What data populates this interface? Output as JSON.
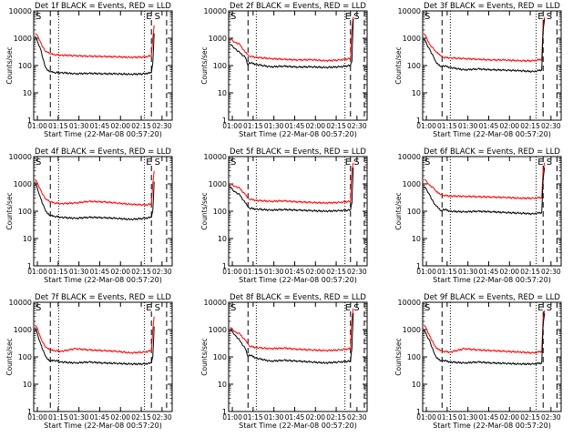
{
  "figure": {
    "common": {
      "ylabel": "Counts/sec",
      "xlabel": "Start Time (22-Mar-08 00:57:20)",
      "x_ticks": [
        "01:00",
        "01:15",
        "01:30",
        "01:45",
        "02:00",
        "02:15",
        "02:30"
      ],
      "y_ticks": [
        "1",
        "10",
        "100",
        "1000",
        "10000"
      ],
      "series_colors": {
        "events": "#000000",
        "lld": "#ff0000"
      }
    }
  },
  "chart_data": [
    {
      "type": "line",
      "title": "Det 1f BLACK = Events, RED = LLD",
      "corner_labels": [
        "S",
        "E S"
      ],
      "xlabel": "Start Time (22-Mar-08 00:57:20)",
      "ylabel": "Counts/sec",
      "ylog": true,
      "ylim": [
        1,
        10000
      ],
      "xlim_minutes": [
        0,
        100
      ],
      "vlines_dashed": [
        12,
        85,
        96
      ],
      "vlines_dotted": [
        18,
        80
      ],
      "series": [
        {
          "name": "Events",
          "x": [
            1,
            3,
            5,
            8,
            10,
            12,
            15,
            20,
            30,
            40,
            50,
            60,
            70,
            80,
            85,
            86,
            87
          ],
          "y": [
            1200,
            700,
            400,
            100,
            65,
            60,
            55,
            55,
            50,
            52,
            50,
            50,
            48,
            50,
            55,
            120,
            1500
          ]
        },
        {
          "name": "LLD",
          "x": [
            1,
            3,
            5,
            8,
            10,
            12,
            15,
            20,
            30,
            40,
            50,
            60,
            70,
            80,
            85,
            86,
            87
          ],
          "y": [
            1500,
            1200,
            700,
            350,
            300,
            270,
            250,
            240,
            230,
            220,
            215,
            210,
            200,
            205,
            230,
            1000,
            3000
          ]
        }
      ]
    },
    {
      "type": "line",
      "title": "Det 2f BLACK = Events, RED = LLD",
      "corner_labels": [
        "S",
        "E S"
      ],
      "xlabel": "Start Time (22-Mar-08 00:57:20)",
      "ylabel": "Counts/sec",
      "ylog": true,
      "ylim": [
        1,
        10000
      ],
      "xlim_minutes": [
        0,
        100
      ],
      "vlines_dashed": [
        14,
        88,
        98
      ],
      "vlines_dotted": [
        20,
        84
      ],
      "series": [
        {
          "name": "Events",
          "x": [
            1,
            3,
            5,
            8,
            12,
            14,
            15,
            20,
            30,
            40,
            50,
            60,
            70,
            80,
            88,
            89,
            90
          ],
          "y": [
            600,
            500,
            400,
            300,
            200,
            100,
            130,
            110,
            90,
            95,
            88,
            90,
            85,
            90,
            100,
            140,
            5000
          ]
        },
        {
          "name": "LLD",
          "x": [
            1,
            3,
            5,
            8,
            12,
            14,
            15,
            20,
            30,
            40,
            50,
            60,
            70,
            80,
            88,
            89,
            90
          ],
          "y": [
            1000,
            800,
            700,
            600,
            300,
            250,
            220,
            200,
            180,
            170,
            160,
            165,
            150,
            160,
            180,
            2000,
            6000
          ]
        }
      ]
    },
    {
      "type": "line",
      "title": "Det 3f BLACK = Events, RED = LLD",
      "corner_labels": [
        "S",
        "E S"
      ],
      "xlabel": "Start Time (22-Mar-08 00:57:20)",
      "ylabel": "Counts/sec",
      "ylog": true,
      "ylim": [
        1,
        10000
      ],
      "xlim_minutes": [
        0,
        100
      ],
      "vlines_dashed": [
        14,
        87,
        97
      ],
      "vlines_dotted": [
        20,
        82
      ],
      "series": [
        {
          "name": "Events",
          "x": [
            1,
            3,
            5,
            8,
            10,
            14,
            15,
            20,
            30,
            40,
            50,
            60,
            70,
            80,
            86,
            87,
            88
          ],
          "y": [
            1000,
            600,
            400,
            200,
            120,
            90,
            100,
            85,
            70,
            75,
            70,
            68,
            65,
            60,
            70,
            2000,
            5000
          ]
        },
        {
          "name": "LLD",
          "x": [
            1,
            3,
            5,
            8,
            10,
            14,
            15,
            20,
            30,
            40,
            50,
            60,
            70,
            80,
            86,
            87,
            88
          ],
          "y": [
            1500,
            1000,
            600,
            400,
            300,
            220,
            200,
            190,
            180,
            170,
            160,
            160,
            150,
            150,
            170,
            3000,
            6000
          ]
        }
      ]
    },
    {
      "type": "line",
      "title": "Det 4f BLACK = Events, RED = LLD",
      "corner_labels": [
        "S",
        "E S"
      ],
      "xlabel": "Start Time (22-Mar-08 00:57:20)",
      "ylabel": "Counts/sec",
      "ylog": true,
      "ylim": [
        1,
        10000
      ],
      "xlim_minutes": [
        0,
        100
      ],
      "vlines_dashed": [
        12,
        85,
        96
      ],
      "vlines_dotted": [
        18,
        80
      ],
      "series": [
        {
          "name": "Events",
          "x": [
            1,
            3,
            5,
            8,
            10,
            12,
            15,
            20,
            30,
            40,
            50,
            60,
            70,
            80,
            85,
            86,
            87
          ],
          "y": [
            1200,
            600,
            300,
            120,
            80,
            70,
            65,
            60,
            55,
            60,
            58,
            55,
            50,
            55,
            60,
            100,
            1200
          ]
        },
        {
          "name": "LLD",
          "x": [
            1,
            3,
            5,
            8,
            10,
            12,
            15,
            20,
            30,
            40,
            50,
            60,
            70,
            80,
            85,
            86,
            87
          ],
          "y": [
            1500,
            1000,
            600,
            300,
            250,
            220,
            200,
            190,
            200,
            230,
            220,
            200,
            180,
            170,
            180,
            1000,
            3000
          ]
        }
      ]
    },
    {
      "type": "line",
      "title": "Det 5f BLACK = Events, RED = LLD",
      "corner_labels": [
        "S",
        "E S"
      ],
      "xlabel": "Start Time (22-Mar-08 00:57:20)",
      "ylabel": "Counts/sec",
      "ylog": true,
      "ylim": [
        1,
        10000
      ],
      "xlim_minutes": [
        0,
        100
      ],
      "vlines_dashed": [
        14,
        88,
        98
      ],
      "vlines_dotted": [
        20,
        84
      ],
      "series": [
        {
          "name": "Events",
          "x": [
            1,
            3,
            5,
            8,
            12,
            14,
            15,
            20,
            30,
            40,
            50,
            60,
            70,
            80,
            88,
            89,
            90
          ],
          "y": [
            800,
            600,
            500,
            400,
            200,
            150,
            130,
            120,
            110,
            115,
            110,
            105,
            100,
            105,
            110,
            200,
            4000
          ]
        },
        {
          "name": "LLD",
          "x": [
            1,
            3,
            5,
            8,
            12,
            14,
            15,
            20,
            30,
            40,
            50,
            60,
            70,
            80,
            88,
            89,
            90
          ],
          "y": [
            1000,
            900,
            800,
            700,
            400,
            300,
            280,
            250,
            230,
            240,
            220,
            210,
            200,
            210,
            230,
            3000,
            6000
          ]
        }
      ]
    },
    {
      "type": "line",
      "title": "Det 6f BLACK = Events, RED = LLD",
      "corner_labels": [
        "S",
        "E S"
      ],
      "xlabel": "Start Time (22-Mar-08 00:57:20)",
      "ylabel": "Counts/sec",
      "ylog": true,
      "ylim": [
        1,
        10000
      ],
      "xlim_minutes": [
        0,
        100
      ],
      "vlines_dashed": [
        14,
        87,
        97
      ],
      "vlines_dotted": [
        20,
        82
      ],
      "series": [
        {
          "name": "Events",
          "x": [
            1,
            3,
            5,
            8,
            10,
            14,
            15,
            20,
            30,
            40,
            50,
            60,
            70,
            80,
            86,
            87,
            88
          ],
          "y": [
            800,
            600,
            400,
            200,
            150,
            100,
            120,
            100,
            95,
            100,
            95,
            90,
            85,
            80,
            90,
            1500,
            4000
          ]
        },
        {
          "name": "LLD",
          "x": [
            1,
            3,
            5,
            8,
            10,
            14,
            15,
            20,
            30,
            40,
            50,
            60,
            70,
            80,
            86,
            87,
            88
          ],
          "y": [
            1500,
            1200,
            900,
            700,
            500,
            400,
            380,
            360,
            350,
            340,
            330,
            320,
            300,
            300,
            320,
            3000,
            6000
          ]
        }
      ]
    },
    {
      "type": "line",
      "title": "Det 7f BLACK = Events, RED = LLD",
      "corner_labels": [
        "S",
        "E S"
      ],
      "xlabel": "Start Time (22-Mar-08 00:57:20)",
      "ylabel": "Counts/sec",
      "ylog": true,
      "ylim": [
        1,
        10000
      ],
      "xlim_minutes": [
        0,
        100
      ],
      "vlines_dashed": [
        12,
        85,
        96
      ],
      "vlines_dotted": [
        18,
        80
      ],
      "series": [
        {
          "name": "Events",
          "x": [
            1,
            3,
            5,
            8,
            10,
            12,
            15,
            20,
            30,
            40,
            50,
            60,
            70,
            80,
            85,
            86,
            87
          ],
          "y": [
            1200,
            600,
            300,
            120,
            80,
            70,
            75,
            65,
            60,
            65,
            60,
            58,
            55,
            55,
            60,
            100,
            1300
          ]
        },
        {
          "name": "LLD",
          "x": [
            1,
            3,
            5,
            8,
            10,
            12,
            15,
            20,
            30,
            40,
            50,
            60,
            70,
            80,
            85,
            86,
            87
          ],
          "y": [
            1500,
            1000,
            500,
            250,
            200,
            180,
            170,
            160,
            200,
            180,
            170,
            160,
            140,
            150,
            170,
            1000,
            3000
          ]
        }
      ]
    },
    {
      "type": "line",
      "title": "Det 8f BLACK = Events, RED = LLD",
      "corner_labels": [
        "S",
        "E S"
      ],
      "xlabel": "Start Time (22-Mar-08 00:57:20)",
      "ylabel": "Counts/sec",
      "ylog": true,
      "ylim": [
        1,
        10000
      ],
      "xlim_minutes": [
        0,
        100
      ],
      "vlines_dashed": [
        14,
        88,
        98
      ],
      "vlines_dotted": [
        20,
        84
      ],
      "series": [
        {
          "name": "Events",
          "x": [
            1,
            3,
            5,
            8,
            12,
            14,
            15,
            20,
            30,
            40,
            50,
            60,
            70,
            80,
            88,
            89,
            90
          ],
          "y": [
            1000,
            800,
            600,
            400,
            200,
            100,
            120,
            90,
            70,
            75,
            70,
            65,
            60,
            65,
            70,
            200,
            4000
          ]
        },
        {
          "name": "LLD",
          "x": [
            1,
            3,
            5,
            8,
            12,
            14,
            15,
            20,
            30,
            40,
            50,
            60,
            70,
            80,
            88,
            89,
            90
          ],
          "y": [
            1200,
            1000,
            800,
            700,
            400,
            300,
            250,
            220,
            200,
            210,
            190,
            180,
            170,
            180,
            200,
            2500,
            6000
          ]
        }
      ]
    },
    {
      "type": "line",
      "title": "Det 9f BLACK = Events, RED = LLD",
      "corner_labels": [
        "S",
        "E S"
      ],
      "xlabel": "Start Time (22-Mar-08 00:57:20)",
      "ylabel": "Counts/sec",
      "ylog": true,
      "ylim": [
        1,
        10000
      ],
      "xlim_minutes": [
        0,
        100
      ],
      "vlines_dashed": [
        14,
        87,
        97
      ],
      "vlines_dotted": [
        20,
        82
      ],
      "series": [
        {
          "name": "Events",
          "x": [
            1,
            3,
            5,
            8,
            10,
            14,
            15,
            20,
            30,
            40,
            50,
            60,
            70,
            80,
            86,
            87,
            88
          ],
          "y": [
            1000,
            600,
            400,
            150,
            90,
            70,
            75,
            65,
            60,
            65,
            60,
            58,
            55,
            55,
            60,
            1500,
            4000
          ]
        },
        {
          "name": "LLD",
          "x": [
            1,
            3,
            5,
            8,
            10,
            14,
            15,
            20,
            30,
            40,
            50,
            60,
            70,
            80,
            86,
            87,
            88
          ],
          "y": [
            1500,
            1000,
            600,
            300,
            200,
            170,
            160,
            150,
            200,
            180,
            170,
            160,
            150,
            140,
            160,
            2500,
            5000
          ]
        }
      ]
    }
  ]
}
